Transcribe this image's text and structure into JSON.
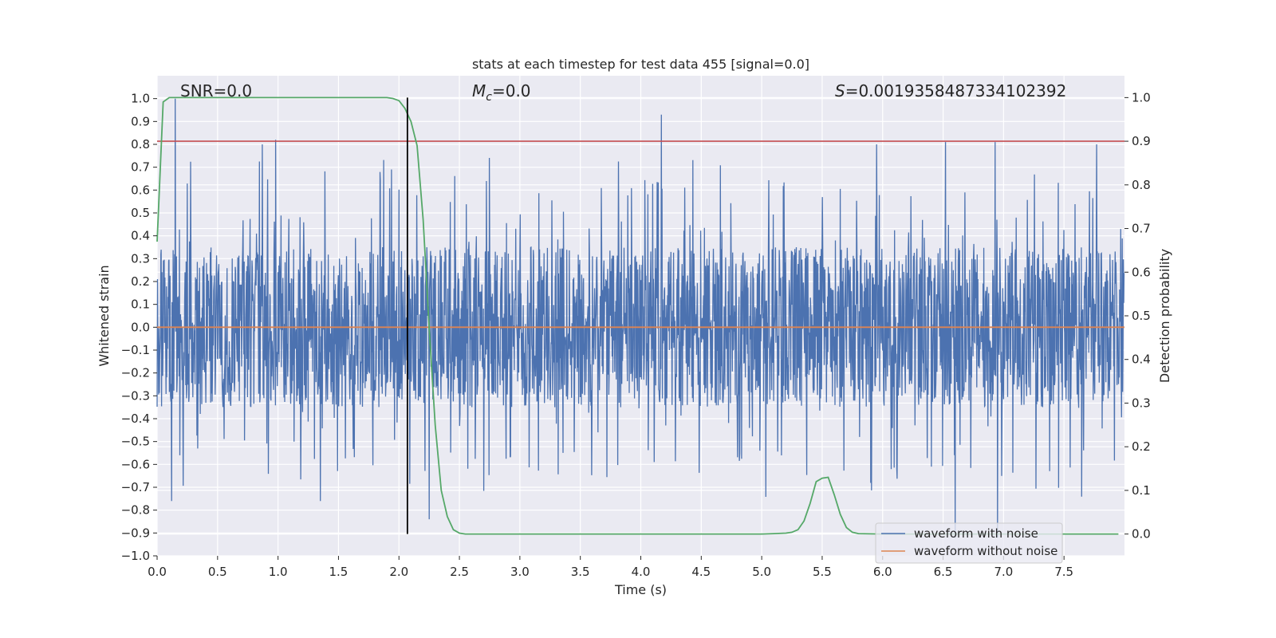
{
  "chart_data": {
    "type": "line",
    "title": "stats at each timestep for test data 455 [signal=0.0]",
    "xlabel": "Time (s)",
    "ylabel_left": "Whitened strain",
    "ylabel_right": "Detection probability",
    "xlim": [
      0.0,
      8.0
    ],
    "ylim_left": [
      -1.0,
      1.1
    ],
    "ylim_right": [
      -0.05,
      1.05
    ],
    "x_ticks": [
      "0.0",
      "0.5",
      "1.0",
      "1.5",
      "2.0",
      "2.5",
      "3.0",
      "3.5",
      "4.0",
      "4.5",
      "5.0",
      "5.5",
      "6.0",
      "6.5",
      "7.0",
      "7.5"
    ],
    "y_ticks_left": [
      "−1.0",
      "−0.9",
      "−0.8",
      "−0.7",
      "−0.6",
      "−0.5",
      "−0.4",
      "−0.3",
      "−0.2",
      "−0.1",
      "0.0",
      "0.1",
      "0.2",
      "0.3",
      "0.4",
      "0.5",
      "0.6",
      "0.7",
      "0.8",
      "0.9",
      "1.0"
    ],
    "y_ticks_right": [
      "0.0",
      "0.1",
      "0.2",
      "0.3",
      "0.4",
      "0.5",
      "0.6",
      "0.7",
      "0.8",
      "0.9",
      "1.0"
    ],
    "grid": true,
    "annotations": {
      "snr": "SNR=0.0",
      "mc_symbol": "M",
      "mc_sub": "c",
      "mc_value": "=0.0",
      "s_symbol": "S",
      "s_value": "=0.0019358487334102392"
    },
    "series": [
      {
        "name": "waveform with noise",
        "axis": "left",
        "color": "#4c72b0",
        "description_values": {
          "band_min": -0.35,
          "band_max": 0.35,
          "peak_max": 1.0,
          "peak_min": -0.92
        },
        "notable_peaks": [
          {
            "x": 0.15,
            "y": 1.0
          },
          {
            "x": 0.98,
            "y": 0.82
          },
          {
            "x": 0.87,
            "y": 0.8
          },
          {
            "x": 4.17,
            "y": 0.93
          },
          {
            "x": 5.95,
            "y": 0.8
          },
          {
            "x": 6.52,
            "y": 0.81
          },
          {
            "x": 6.93,
            "y": 0.81
          },
          {
            "x": 7.77,
            "y": 0.8
          },
          {
            "x": 6.6,
            "y": -0.92
          },
          {
            "x": 6.95,
            "y": -0.92
          },
          {
            "x": 2.25,
            "y": -0.84
          },
          {
            "x": 0.12,
            "y": -0.76
          },
          {
            "x": 1.35,
            "y": -0.76
          }
        ]
      },
      {
        "name": "waveform without noise",
        "axis": "left",
        "color": "#dd8452",
        "x": [
          0.0,
          8.0
        ],
        "values": [
          0.0,
          0.0
        ]
      },
      {
        "name": "detection probability",
        "axis": "right",
        "color": "#55a868",
        "x": [
          0.0,
          0.05,
          0.1,
          0.15,
          0.2,
          0.5,
          1.0,
          1.5,
          1.8,
          1.9,
          1.95,
          2.0,
          2.05,
          2.1,
          2.15,
          2.2,
          2.25,
          2.3,
          2.35,
          2.4,
          2.45,
          2.5,
          2.55,
          2.6,
          3.0,
          4.0,
          5.0,
          5.1,
          5.2,
          5.25,
          5.3,
          5.35,
          5.4,
          5.45,
          5.5,
          5.55,
          5.6,
          5.65,
          5.7,
          5.75,
          5.8,
          6.0,
          7.0,
          7.95
        ],
        "values": [
          0.67,
          0.99,
          1.0,
          1.0,
          1.0,
          1.0,
          1.0,
          1.0,
          1.0,
          1.0,
          0.998,
          0.993,
          0.975,
          0.945,
          0.89,
          0.72,
          0.47,
          0.25,
          0.1,
          0.04,
          0.01,
          0.002,
          0.0,
          0.0,
          0.0,
          0.0,
          0.0,
          0.001,
          0.002,
          0.004,
          0.01,
          0.03,
          0.07,
          0.12,
          0.128,
          0.13,
          0.09,
          0.045,
          0.015,
          0.004,
          0.001,
          0.0,
          0.0,
          0.0
        ]
      }
    ],
    "horizontal_lines": [
      {
        "name": "threshold",
        "axis": "right",
        "value": 0.9,
        "color": "#c44e52"
      }
    ],
    "vertical_lines": [
      {
        "name": "detection-time",
        "x": 2.07,
        "y_from": 0.0,
        "y_to": 1.0,
        "axis": "right",
        "color": "#000000"
      }
    ],
    "legend": {
      "position": "lower-right",
      "entries": [
        {
          "label": "waveform with noise",
          "color": "#4c72b0"
        },
        {
          "label": "waveform without noise",
          "color": "#dd8452"
        }
      ]
    }
  }
}
